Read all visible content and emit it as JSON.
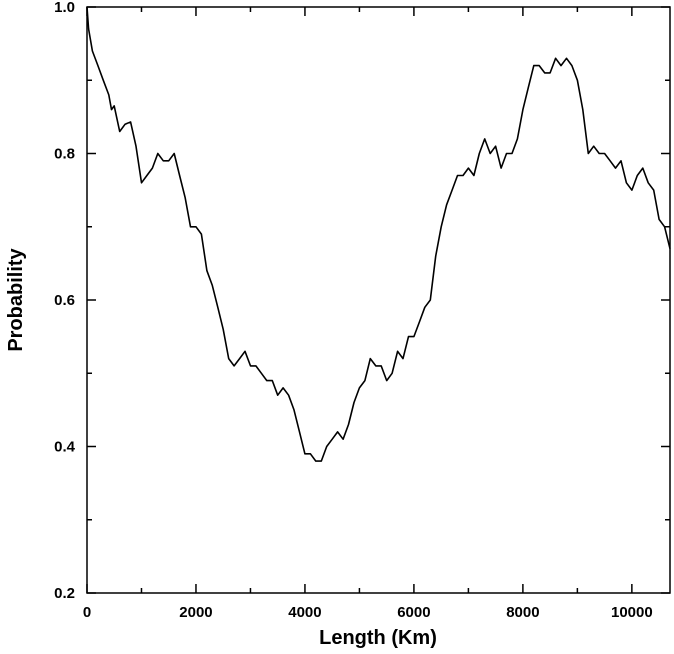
{
  "chart_data": {
    "type": "line",
    "xlabel": "Length (Km)",
    "ylabel": "Probability",
    "xlim": [
      0,
      10700
    ],
    "ylim": [
      0.2,
      1.0
    ],
    "xticks": [
      0,
      2000,
      4000,
      6000,
      8000,
      10000
    ],
    "xtick_labels": [
      "0",
      "2000",
      "4000",
      "6000",
      "8000",
      "10000"
    ],
    "yticks": [
      0.2,
      0.4,
      0.6,
      0.8,
      1.0
    ],
    "ytick_labels": [
      "0.2",
      "0.4",
      "0.6",
      "0.8",
      "1.0"
    ],
    "y_minor_ticks": [
      0.3,
      0.5,
      0.7,
      0.9
    ],
    "x_minor_ticks": [
      1000,
      3000,
      5000,
      7000,
      9000
    ],
    "grid": false,
    "line_color": "#000000",
    "series": [
      {
        "x": [
          0,
          30,
          100,
          200,
          300,
          400,
          450,
          500,
          600,
          700,
          800,
          900,
          1000,
          1100,
          1200,
          1300,
          1400,
          1500,
          1600,
          1700,
          1800,
          1900,
          2000,
          2100,
          2200,
          2300,
          2400,
          2500,
          2600,
          2700,
          2800,
          2900,
          3000,
          3100,
          3200,
          3300,
          3400,
          3500,
          3600,
          3700,
          3800,
          3900,
          4000,
          4100,
          4200,
          4300,
          4400,
          4500,
          4600,
          4700,
          4800,
          4900,
          5000,
          5100,
          5200,
          5300,
          5400,
          5500,
          5600,
          5700,
          5800,
          5900,
          6000,
          6100,
          6200,
          6300,
          6400,
          6500,
          6600,
          6700,
          6800,
          6900,
          7000,
          7100,
          7200,
          7300,
          7400,
          7500,
          7600,
          7700,
          7800,
          7900,
          8000,
          8100,
          8200,
          8300,
          8400,
          8500,
          8600,
          8700,
          8800,
          8900,
          9000,
          9100,
          9200,
          9300,
          9400,
          9500,
          9600,
          9700,
          9800,
          9900,
          10000,
          10100,
          10200,
          10300,
          10400,
          10500,
          10600,
          10700
        ],
        "y": [
          1.0,
          0.97,
          0.94,
          0.92,
          0.9,
          0.88,
          0.86,
          0.865,
          0.83,
          0.84,
          0.843,
          0.81,
          0.76,
          0.77,
          0.78,
          0.8,
          0.79,
          0.79,
          0.8,
          0.77,
          0.74,
          0.7,
          0.7,
          0.69,
          0.64,
          0.62,
          0.59,
          0.56,
          0.52,
          0.51,
          0.52,
          0.53,
          0.51,
          0.51,
          0.5,
          0.49,
          0.49,
          0.47,
          0.48,
          0.47,
          0.45,
          0.42,
          0.39,
          0.39,
          0.38,
          0.38,
          0.4,
          0.41,
          0.42,
          0.41,
          0.43,
          0.46,
          0.48,
          0.49,
          0.52,
          0.51,
          0.51,
          0.49,
          0.5,
          0.53,
          0.52,
          0.55,
          0.55,
          0.57,
          0.59,
          0.6,
          0.66,
          0.7,
          0.73,
          0.75,
          0.77,
          0.77,
          0.78,
          0.77,
          0.8,
          0.82,
          0.8,
          0.81,
          0.78,
          0.8,
          0.8,
          0.82,
          0.86,
          0.89,
          0.92,
          0.92,
          0.91,
          0.91,
          0.93,
          0.92,
          0.93,
          0.92,
          0.9,
          0.86,
          0.8,
          0.81,
          0.8,
          0.8,
          0.79,
          0.78,
          0.79,
          0.76,
          0.75,
          0.77,
          0.78,
          0.76,
          0.75,
          0.71,
          0.7,
          0.67
        ]
      }
    ]
  }
}
